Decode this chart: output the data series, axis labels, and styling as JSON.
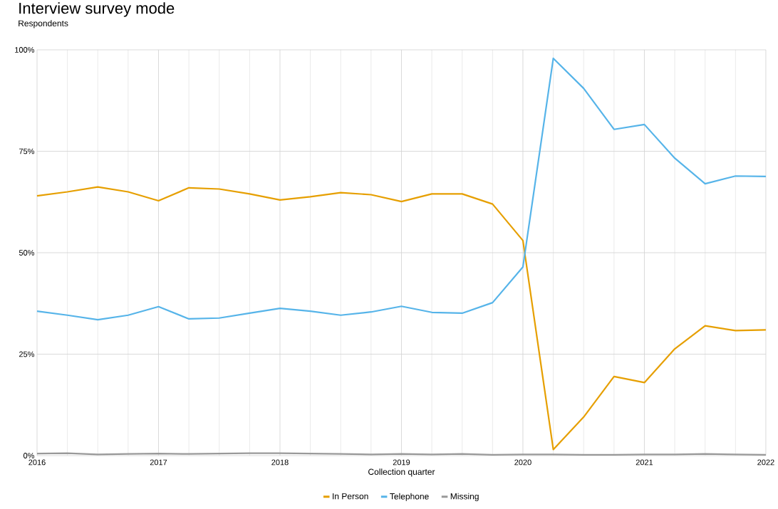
{
  "chart_data": {
    "type": "line",
    "title": "Interview survey mode",
    "subtitle": "Respondents",
    "xlabel": "Collection quarter",
    "x": [
      "2016-01",
      "2016-04",
      "2016-07",
      "2016-10",
      "2017-01",
      "2017-04",
      "2017-07",
      "2017-10",
      "2018-01",
      "2018-04",
      "2018-07",
      "2018-10",
      "2019-01",
      "2019-04",
      "2019-07",
      "2019-10",
      "2020-01",
      "2020-04",
      "2020-07",
      "2020-10",
      "2021-01",
      "2021-04",
      "2021-07",
      "2021-10",
      "2022-01"
    ],
    "series": [
      {
        "name": "In Person",
        "color": "#e69f00",
        "values": [
          64.0,
          65.0,
          66.2,
          65.0,
          62.8,
          66.0,
          65.7,
          64.5,
          63.0,
          63.8,
          64.8,
          64.3,
          62.6,
          64.5,
          64.5,
          62.0,
          53.0,
          1.5,
          9.5,
          19.5,
          18.0,
          26.3,
          32.0,
          30.8,
          31.0
        ]
      },
      {
        "name": "Telephone",
        "color": "#56b4e9",
        "values": [
          35.6,
          34.6,
          33.5,
          34.6,
          36.7,
          33.7,
          33.9,
          35.1,
          36.3,
          35.6,
          34.6,
          35.4,
          36.8,
          35.3,
          35.1,
          37.7,
          46.5,
          97.9,
          90.5,
          80.4,
          81.6,
          73.3,
          67.0,
          68.9,
          68.8
        ]
      },
      {
        "name": "Missing",
        "color": "#999999",
        "values": [
          0.5,
          0.6,
          0.3,
          0.4,
          0.5,
          0.4,
          0.5,
          0.6,
          0.6,
          0.5,
          0.4,
          0.3,
          0.4,
          0.3,
          0.4,
          0.2,
          0.3,
          0.3,
          0.2,
          0.2,
          0.3,
          0.3,
          0.4,
          0.3,
          0.2
        ]
      }
    ],
    "xlim": [
      "2016",
      "2022"
    ],
    "xticks": [
      "2016",
      "2017",
      "2018",
      "2019",
      "2020",
      "2021",
      "2022"
    ],
    "ylim": [
      0,
      100
    ],
    "yticks": [
      {
        "value": 0,
        "label": "0%"
      },
      {
        "value": 25,
        "label": "25%"
      },
      {
        "value": 50,
        "label": "50%"
      },
      {
        "value": 75,
        "label": "75%"
      },
      {
        "value": 100,
        "label": "100%"
      }
    ],
    "grid": true,
    "legend": "bottom",
    "line_style": "solid"
  }
}
